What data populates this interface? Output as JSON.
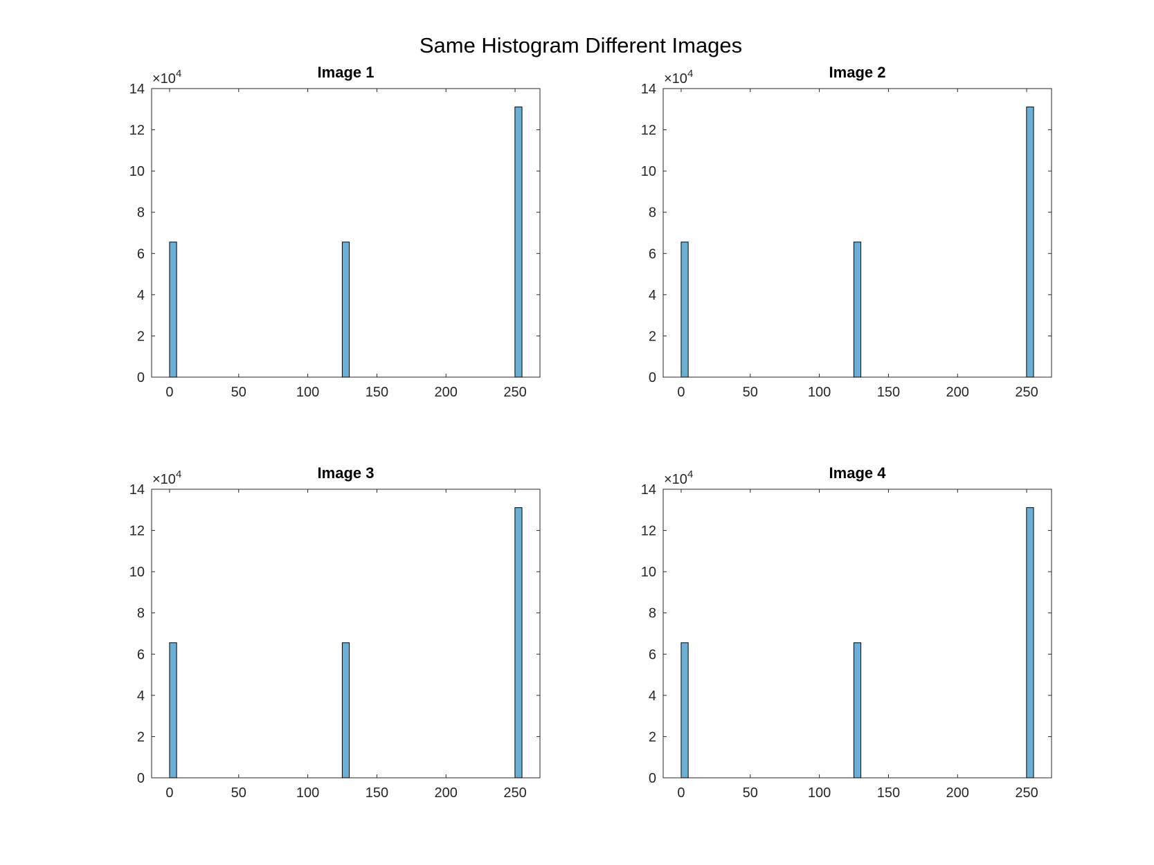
{
  "figure": {
    "title": "Same Histogram Different Images"
  },
  "colors": {
    "bar_fill": "#6baed6",
    "bar_edge": "#000000",
    "axis": "#262626"
  },
  "chart_data": [
    {
      "type": "bar",
      "title": "Image 1",
      "xlabel": "",
      "ylabel": "",
      "xlim": [
        -13,
        268
      ],
      "ylim": [
        0,
        140000
      ],
      "xticks": [
        0,
        50,
        100,
        150,
        200,
        250
      ],
      "yticks": [
        0,
        20000,
        40000,
        60000,
        80000,
        100000,
        120000,
        140000
      ],
      "ytick_labels": [
        "0",
        "2",
        "4",
        "6",
        "8",
        "10",
        "12",
        "14"
      ],
      "y_exponent_base": "×10",
      "y_exponent_power": "4",
      "bin_width": 5.1,
      "bins": [
        {
          "x": 2.55,
          "value": 65536
        },
        {
          "x": 127.5,
          "value": 65536
        },
        {
          "x": 252.45,
          "value": 131072
        }
      ],
      "grid": false,
      "legend": "none"
    },
    {
      "type": "bar",
      "title": "Image 2",
      "xlabel": "",
      "ylabel": "",
      "xlim": [
        -13,
        268
      ],
      "ylim": [
        0,
        140000
      ],
      "xticks": [
        0,
        50,
        100,
        150,
        200,
        250
      ],
      "yticks": [
        0,
        20000,
        40000,
        60000,
        80000,
        100000,
        120000,
        140000
      ],
      "ytick_labels": [
        "0",
        "2",
        "4",
        "6",
        "8",
        "10",
        "12",
        "14"
      ],
      "y_exponent_base": "×10",
      "y_exponent_power": "4",
      "bin_width": 5.1,
      "bins": [
        {
          "x": 2.55,
          "value": 65536
        },
        {
          "x": 127.5,
          "value": 65536
        },
        {
          "x": 252.45,
          "value": 131072
        }
      ],
      "grid": false,
      "legend": "none"
    },
    {
      "type": "bar",
      "title": "Image 3",
      "xlabel": "",
      "ylabel": "",
      "xlim": [
        -13,
        268
      ],
      "ylim": [
        0,
        140000
      ],
      "xticks": [
        0,
        50,
        100,
        150,
        200,
        250
      ],
      "yticks": [
        0,
        20000,
        40000,
        60000,
        80000,
        100000,
        120000,
        140000
      ],
      "ytick_labels": [
        "0",
        "2",
        "4",
        "6",
        "8",
        "10",
        "12",
        "14"
      ],
      "y_exponent_base": "×10",
      "y_exponent_power": "4",
      "bin_width": 5.1,
      "bins": [
        {
          "x": 2.55,
          "value": 65536
        },
        {
          "x": 127.5,
          "value": 65536
        },
        {
          "x": 252.45,
          "value": 131072
        }
      ],
      "grid": false,
      "legend": "none"
    },
    {
      "type": "bar",
      "title": "Image 4",
      "xlabel": "",
      "ylabel": "",
      "xlim": [
        -13,
        268
      ],
      "ylim": [
        0,
        140000
      ],
      "xticks": [
        0,
        50,
        100,
        150,
        200,
        250
      ],
      "yticks": [
        0,
        20000,
        40000,
        60000,
        80000,
        100000,
        120000,
        140000
      ],
      "ytick_labels": [
        "0",
        "2",
        "4",
        "6",
        "8",
        "10",
        "12",
        "14"
      ],
      "y_exponent_base": "×10",
      "y_exponent_power": "4",
      "bin_width": 5.1,
      "bins": [
        {
          "x": 2.55,
          "value": 65536
        },
        {
          "x": 127.5,
          "value": 65536
        },
        {
          "x": 252.45,
          "value": 131072
        }
      ],
      "grid": false,
      "legend": "none"
    }
  ]
}
